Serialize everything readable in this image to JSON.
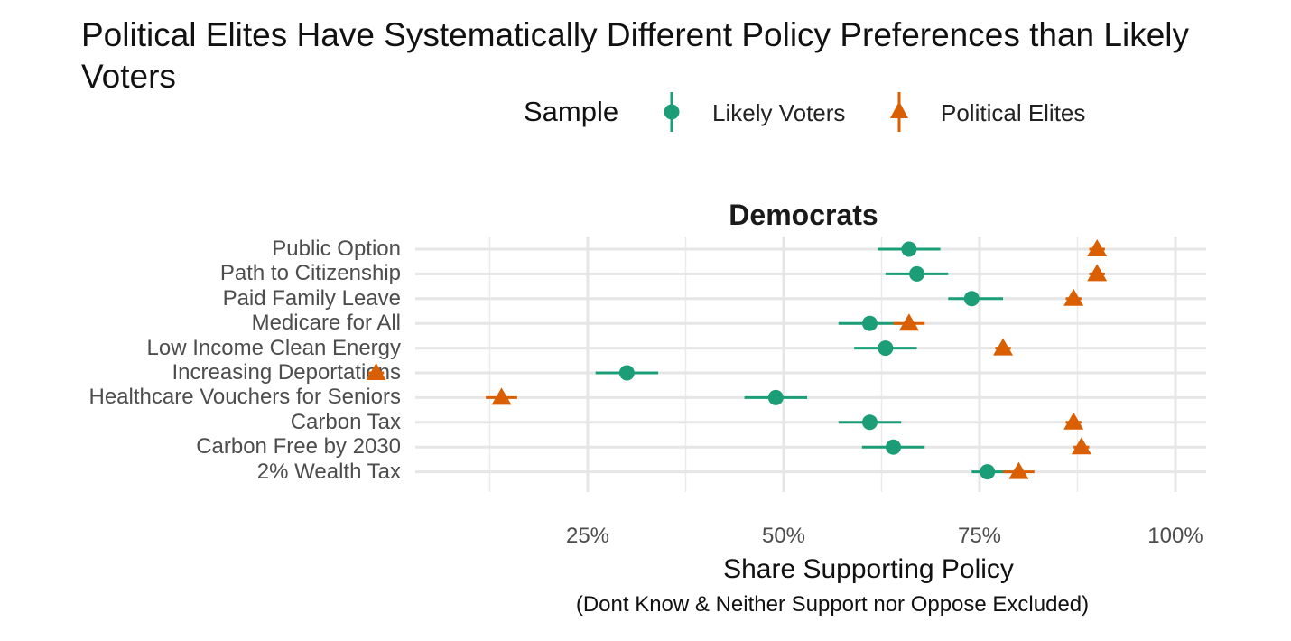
{
  "chart_data": {
    "type": "scatter",
    "title": "Political Elites Have Systematically Different Policy Preferences than Likely Voters",
    "facet": "Democrats",
    "legend": {
      "title": "Sample",
      "placement": "top"
    },
    "xlabel": "Share Supporting Policy",
    "xlabel_note": "(Dont Know & Neither Support nor Oppose Excluded)",
    "x_ticks": [
      {
        "value": 0.25,
        "label": "25%"
      },
      {
        "value": 0.5,
        "label": "50%"
      },
      {
        "value": 0.75,
        "label": "75%"
      },
      {
        "value": 1.0,
        "label": "100%"
      }
    ],
    "xlim": [
      0.0,
      1.0
    ],
    "grid": true,
    "categories": [
      "Public Option",
      "Path to Citizenship",
      "Paid Family Leave",
      "Medicare for All",
      "Low Income Clean Energy",
      "Increasing Deportations",
      "Healthcare Vouchers for Seniors",
      "Carbon Tax",
      "Carbon Free by 2030",
      "2% Wealth Tax"
    ],
    "series": [
      {
        "name": "Likely Voters",
        "color": "#1b9e77",
        "marker": "circle",
        "values": [
          0.66,
          0.67,
          0.74,
          0.61,
          0.63,
          0.3,
          0.49,
          0.61,
          0.64,
          0.76
        ],
        "ci_low": [
          0.62,
          0.63,
          0.71,
          0.57,
          0.59,
          0.26,
          0.45,
          0.57,
          0.6,
          0.74
        ],
        "ci_high": [
          0.7,
          0.71,
          0.78,
          0.65,
          0.67,
          0.34,
          0.53,
          0.65,
          0.68,
          0.79
        ]
      },
      {
        "name": "Political Elites",
        "color": "#d95f02",
        "marker": "triangle",
        "values": [
          0.9,
          0.9,
          0.87,
          0.66,
          0.78,
          -0.02,
          0.14,
          0.87,
          0.88,
          0.8
        ],
        "ci_low": [
          0.89,
          0.89,
          0.86,
          0.64,
          0.77,
          -0.03,
          0.12,
          0.86,
          0.87,
          0.78
        ],
        "ci_high": [
          0.91,
          0.91,
          0.88,
          0.68,
          0.79,
          -0.01,
          0.16,
          0.88,
          0.89,
          0.82
        ]
      }
    ]
  }
}
